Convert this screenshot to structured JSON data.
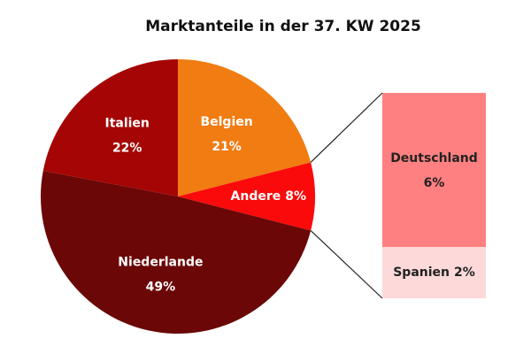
{
  "chart_data": {
    "type": "pie-of-bar",
    "title": "Marktanteile in der 37. KW 2025",
    "categories": [
      "Belgien",
      "Andere",
      "Niederlande",
      "Italien"
    ],
    "values": [
      21,
      8,
      49,
      22
    ],
    "value_labels": [
      "21%",
      "8%",
      "49%",
      "22%"
    ],
    "colors": [
      "#f07c12",
      "#fa0a0a",
      "#6b0707",
      "#a50505"
    ],
    "breakdown": {
      "categories": [
        "Deutschland",
        "Spanien"
      ],
      "values": [
        6,
        2
      ],
      "value_labels": [
        "6%",
        "2%"
      ],
      "colors": [
        "#ff8080",
        "#fdd9d9"
      ]
    }
  }
}
